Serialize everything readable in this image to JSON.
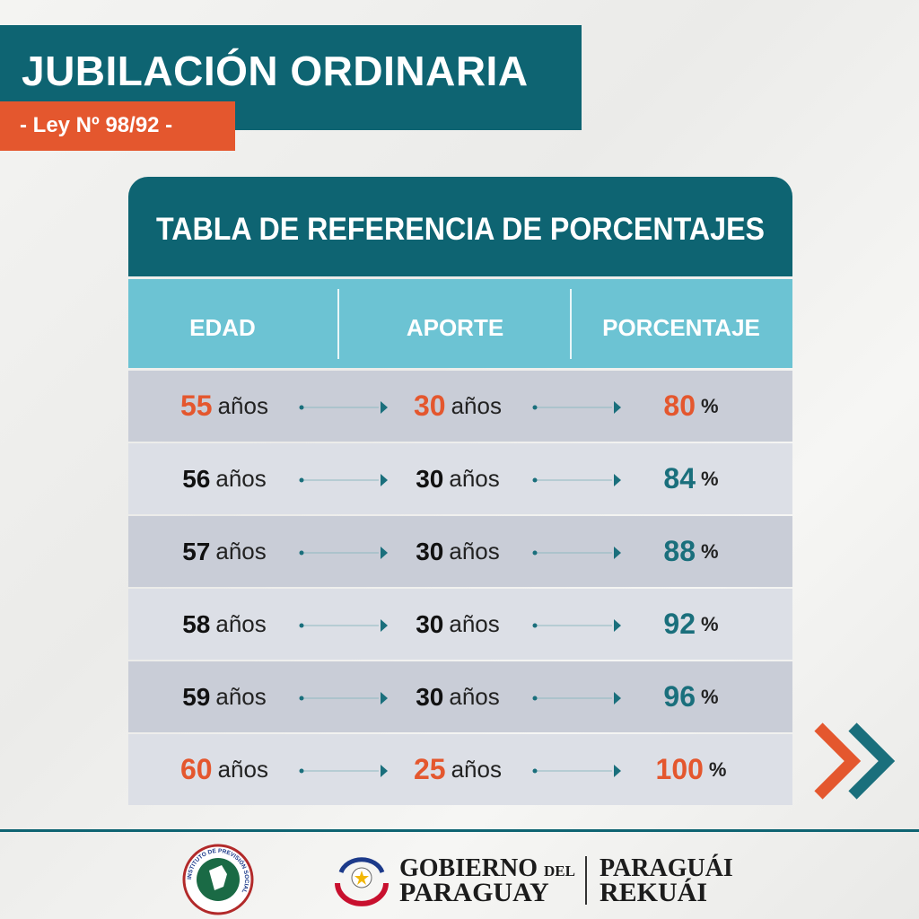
{
  "header": {
    "title": "JUBILACIÓN ORDINARIA",
    "subtitle": "- Ley Nº 98/92 -"
  },
  "table": {
    "title": "TABLA DE REFERENCIA DE PORCENTAJES",
    "columns": [
      "EDAD",
      "APORTE",
      "PORCENTAJE"
    ],
    "rows": [
      {
        "cells": [
          [
            "55",
            "años"
          ],
          [
            "30",
            "años"
          ],
          [
            "80",
            "%"
          ]
        ],
        "color": "#e4572e"
      },
      {
        "cells": [
          [
            "56",
            "años"
          ],
          [
            "30",
            "años"
          ],
          [
            "84",
            "%"
          ]
        ]
      },
      {
        "cells": [
          [
            "57",
            "años"
          ],
          [
            "30",
            "años"
          ],
          [
            "88",
            "%"
          ]
        ]
      },
      {
        "cells": [
          [
            "58",
            "años"
          ],
          [
            "30",
            "años"
          ],
          [
            "92",
            "%"
          ]
        ]
      },
      {
        "cells": [
          [
            "59",
            "años"
          ],
          [
            "30",
            "años"
          ],
          [
            "96",
            "%"
          ]
        ]
      },
      {
        "cells": [
          [
            "60",
            "años"
          ],
          [
            "25",
            "años"
          ],
          [
            "100",
            "%"
          ]
        ],
        "color": "#e4572e"
      }
    ]
  },
  "footer": {
    "seal": "INSTITUTO DE PREVISIÓN SOCIAL",
    "gov_line1": "GOBIERNO",
    "gov_small": "DEL",
    "gov_line2": "PARAGUAY",
    "brand_line1": "PARAGUÁI",
    "brand_line2": "REKUÁI"
  }
}
